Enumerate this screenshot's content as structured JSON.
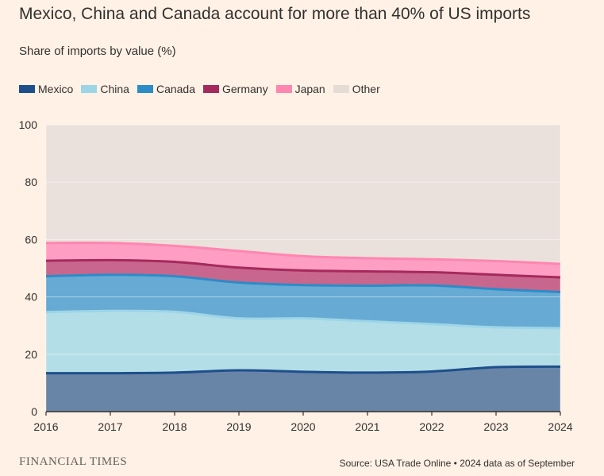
{
  "title": "Mexico, China and Canada account for more than 40% of US imports",
  "subtitle": "Share of imports by value (%)",
  "footer": {
    "logo": "FINANCIAL TIMES",
    "source": "Source: USA Trade Online • 2024 data as of September"
  },
  "chart_data": {
    "type": "area",
    "stacked": true,
    "x": [
      2016,
      2017,
      2018,
      2019,
      2020,
      2021,
      2022,
      2023,
      2024
    ],
    "ylim": [
      0,
      100
    ],
    "yticks": [
      0,
      20,
      40,
      60,
      80,
      100
    ],
    "grid": true,
    "legend_position": "top-left",
    "series": [
      {
        "name": "Mexico",
        "color": "#1E4F8C",
        "fill": "#6884A6",
        "values": [
          13.4,
          13.4,
          13.6,
          14.4,
          13.9,
          13.6,
          14.0,
          15.5,
          15.7
        ]
      },
      {
        "name": "China",
        "color": "#9DD5E8",
        "fill": "#B4DEE7",
        "values": [
          21.3,
          21.7,
          21.2,
          18.1,
          18.6,
          17.9,
          16.5,
          13.9,
          13.4
        ]
      },
      {
        "name": "Canada",
        "color": "#2C8CC8",
        "fill": "#67AAD3",
        "values": [
          12.5,
          12.6,
          12.4,
          12.5,
          11.6,
          12.4,
          13.5,
          13.3,
          12.6
        ]
      },
      {
        "name": "Germany",
        "color": "#A52A5C",
        "fill": "#C9668D",
        "values": [
          5.4,
          5.1,
          5.0,
          5.2,
          5.1,
          5.0,
          4.6,
          5.0,
          5.1
        ]
      },
      {
        "name": "Japan",
        "color": "#FF86B0",
        "fill": "#FF9EC3",
        "values": [
          6.2,
          6.0,
          5.6,
          5.8,
          5.0,
          4.6,
          4.5,
          4.8,
          4.7
        ]
      },
      {
        "name": "Other",
        "color": "#E5DCD6",
        "fill": "#EAE1DC",
        "values": [
          41.2,
          41.2,
          42.2,
          44.0,
          45.8,
          46.5,
          46.9,
          47.5,
          48.5
        ]
      }
    ]
  }
}
